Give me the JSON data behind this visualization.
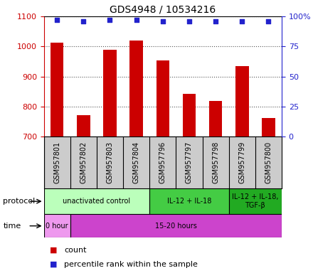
{
  "title": "GDS4948 / 10534216",
  "samples": [
    "GSM957801",
    "GSM957802",
    "GSM957803",
    "GSM957804",
    "GSM957796",
    "GSM957797",
    "GSM957798",
    "GSM957799",
    "GSM957800"
  ],
  "counts": [
    1012,
    770,
    990,
    1020,
    953,
    843,
    818,
    935,
    762
  ],
  "percentile_ranks": [
    97,
    96,
    97,
    97,
    96,
    96,
    96,
    96,
    96
  ],
  "ylim_left": [
    700,
    1100
  ],
  "ylim_right": [
    0,
    100
  ],
  "yticks_left": [
    700,
    800,
    900,
    1000,
    1100
  ],
  "yticks_right": [
    0,
    25,
    50,
    75,
    100
  ],
  "bar_color": "#cc0000",
  "dot_color": "#2222cc",
  "protocol_groups": [
    {
      "label": "unactivated control",
      "start": 0,
      "end": 4,
      "color": "#bbffbb"
    },
    {
      "label": "IL-12 + IL-18",
      "start": 4,
      "end": 7,
      "color": "#44cc44"
    },
    {
      "label": "IL-12 + IL-18,\nTGF-β",
      "start": 7,
      "end": 9,
      "color": "#22aa22"
    }
  ],
  "time_groups": [
    {
      "label": "0 hour",
      "start": 0,
      "end": 1,
      "color": "#ee99ee"
    },
    {
      "label": "15-20 hours",
      "start": 1,
      "end": 9,
      "color": "#cc44cc"
    }
  ],
  "left_axis_color": "#cc0000",
  "right_axis_color": "#2222cc",
  "bg_color": "#ffffff",
  "label_box_color": "#cccccc",
  "left_label_color": "#000000"
}
